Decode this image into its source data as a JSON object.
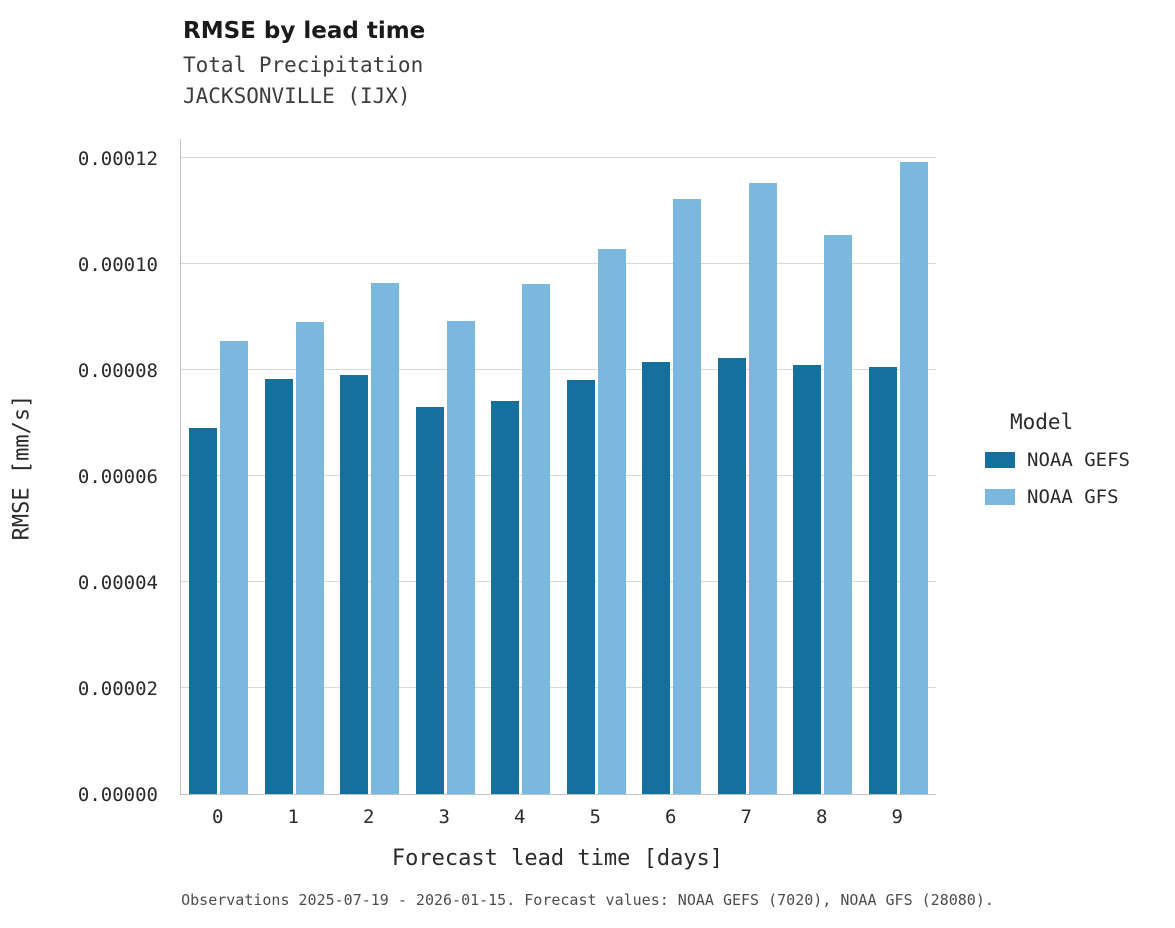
{
  "chart_data": {
    "type": "bar",
    "title": "RMSE by lead time",
    "subtitle_lines": [
      "Total Precipitation",
      "JACKSONVILLE (IJX)"
    ],
    "xlabel": "Forecast lead time [days]",
    "ylabel": "RMSE [mm/s]",
    "categories": [
      "0",
      "1",
      "2",
      "3",
      "4",
      "5",
      "6",
      "7",
      "8",
      "9"
    ],
    "series": [
      {
        "name": "NOAA GEFS",
        "color_key": "gefs",
        "values": [
          6.9e-05,
          7.83e-05,
          7.91e-05,
          7.3e-05,
          7.42e-05,
          7.81e-05,
          8.15e-05,
          8.23e-05,
          8.09e-05,
          8.06e-05
        ]
      },
      {
        "name": "NOAA GFS",
        "color_key": "gfs",
        "values": [
          8.55e-05,
          8.91e-05,
          9.64e-05,
          8.92e-05,
          9.62e-05,
          0.0001028,
          0.0001123,
          0.0001153,
          0.0001055,
          0.0001192
        ]
      }
    ],
    "ylim": [
      0,
      0.00012
    ],
    "yticks": [
      {
        "value": 0.0,
        "label": "0.00000"
      },
      {
        "value": 2e-05,
        "label": "0.00002"
      },
      {
        "value": 4e-05,
        "label": "0.00004"
      },
      {
        "value": 6e-05,
        "label": "0.00006"
      },
      {
        "value": 8e-05,
        "label": "0.00008"
      },
      {
        "value": 0.0001,
        "label": "0.00010"
      },
      {
        "value": 0.00012,
        "label": "0.00012"
      }
    ],
    "grid": "horizontal",
    "legend": {
      "title": "Model",
      "position": "right"
    },
    "caption": "Observations 2025-07-19 - 2026-01-15. Forecast values: NOAA GEFS (7020), NOAA GFS (28080)."
  },
  "colors": {
    "gefs": "#15709e",
    "gfs": "#7ab8dd",
    "grid": "#d9d9d9",
    "spine": "#c3c3c3"
  }
}
